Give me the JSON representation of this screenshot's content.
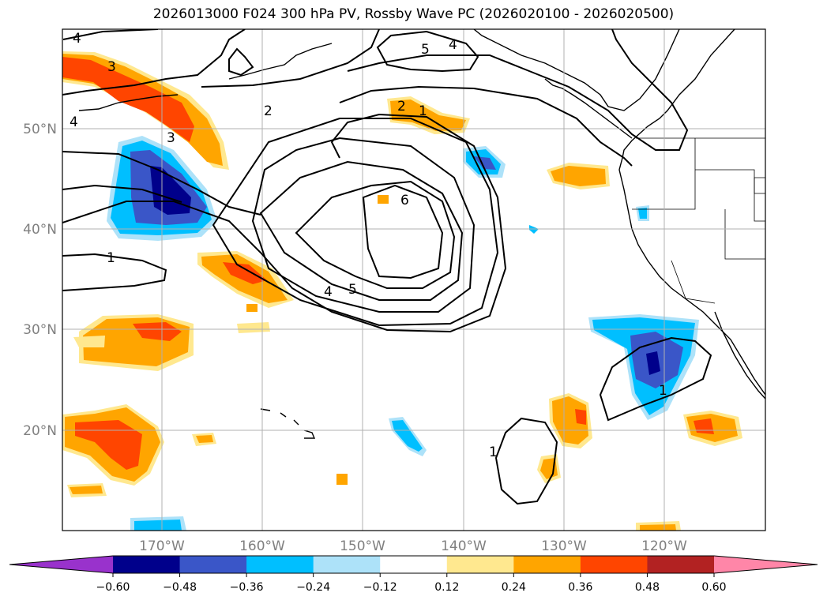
{
  "title": "2026013000 F024 300 hPa PV, Rossby Wave PC (2026020100 - 2026020500)",
  "map": {
    "lon_labels": [
      "170°W",
      "160°W",
      "150°W",
      "140°W",
      "130°W",
      "120°W"
    ],
    "lat_labels": [
      "50°N",
      "40°N",
      "30°N",
      "20°N"
    ],
    "contour_labels": [
      "4",
      "3",
      "4",
      "3",
      "2",
      "5",
      "4",
      "2",
      "1",
      "6",
      "1",
      "4",
      "5",
      "1",
      "1"
    ]
  },
  "colorbar": {
    "ticks": [
      "−0.60",
      "−0.48",
      "−0.36",
      "−0.24",
      "−0.12",
      "0.12",
      "0.24",
      "0.36",
      "0.48",
      "0.60"
    ],
    "colors": [
      "#9932cc",
      "#00008b",
      "#3a56c8",
      "#00bfff",
      "#ade2f9",
      "#ffffff",
      "#ffe88f",
      "#ffa500",
      "#ff4500",
      "#b22222",
      "#ff86a8"
    ]
  }
}
